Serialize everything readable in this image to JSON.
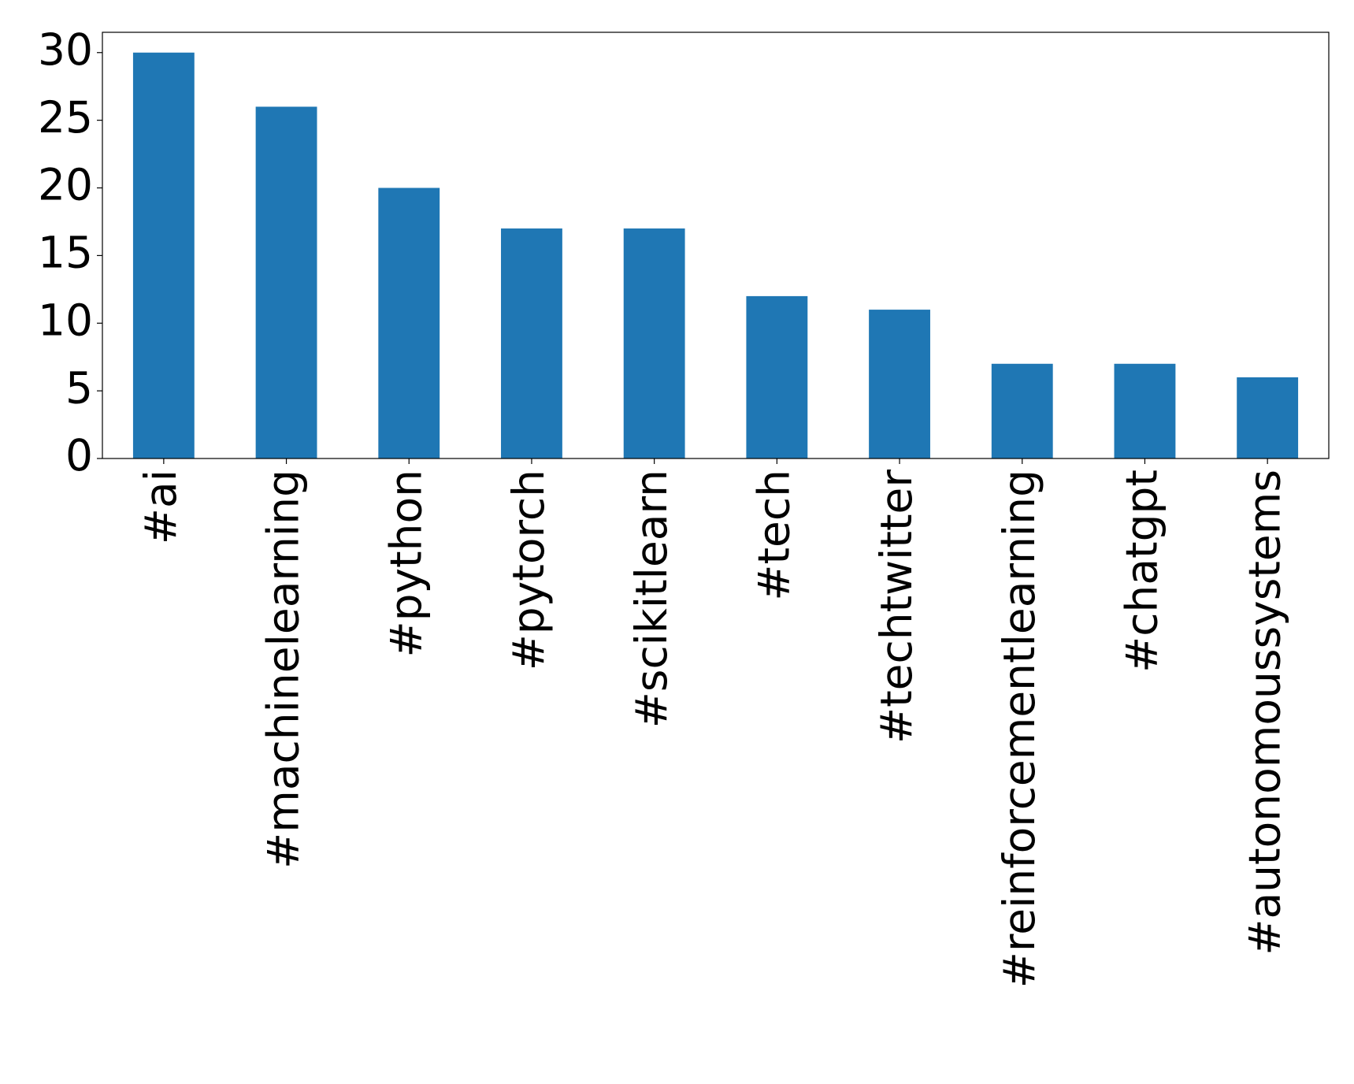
{
  "chart_data": {
    "type": "bar",
    "categories": [
      "#ai",
      "#machinelearning",
      "#python",
      "#pytorch",
      "#scikitlearn",
      "#tech",
      "#techtwitter",
      "#reinforcementlearning",
      "#chatgpt",
      "#autonomoussystems"
    ],
    "values": [
      30,
      26,
      20,
      17,
      17,
      12,
      11,
      7,
      7,
      6
    ],
    "color": "#1f77b4",
    "ylim": [
      0,
      31.5
    ],
    "yticks": [
      0,
      5,
      10,
      15,
      20,
      25,
      30
    ],
    "grid": false
  }
}
